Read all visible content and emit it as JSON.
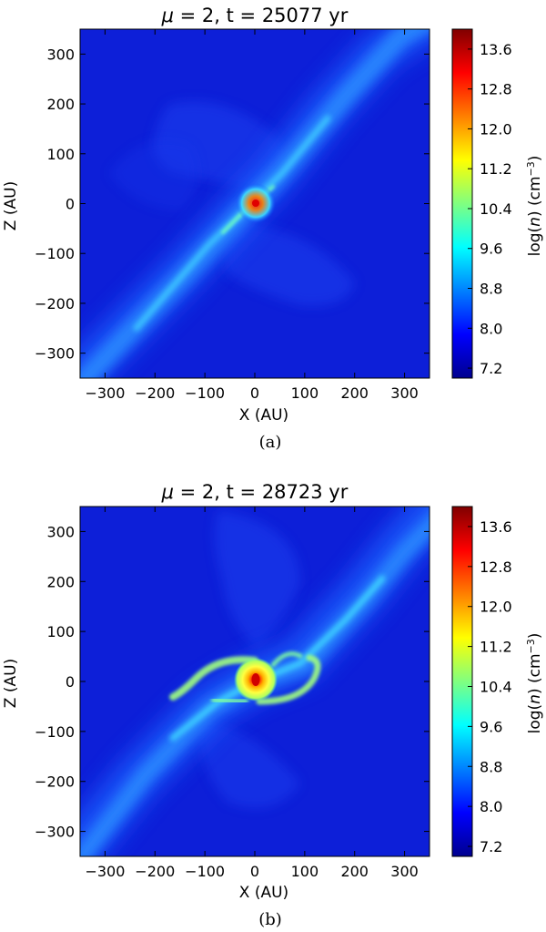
{
  "chart_data": [
    {
      "type": "heatmap",
      "title": "μ = 2, t = 25077 yr",
      "title_var": "μ",
      "title_rest": " = 2, t = 25077 yr",
      "xlabel": "X (AU)",
      "ylabel": "Z (AU)",
      "xlim": [
        -350,
        350
      ],
      "ylim": [
        -350,
        350
      ],
      "xticks": [
        -300,
        -200,
        -100,
        0,
        100,
        200,
        300
      ],
      "yticks": [
        300,
        200,
        100,
        0,
        -100,
        -200,
        -300
      ],
      "xtick_labels": [
        "−300",
        "−200",
        "−100",
        "0",
        "100",
        "200",
        "300"
      ],
      "ytick_labels": [
        "300",
        "200",
        "100",
        "0",
        "−100",
        "−200",
        "−300"
      ],
      "colorbar": {
        "label": "log(n) (cm⁻³)",
        "label_pre": "log(",
        "label_var": "n",
        "label_mid": ") (cm",
        "label_sup": "−3",
        "label_post": ")",
        "range": [
          7.0,
          14.0
        ],
        "ticks": [
          13.6,
          12.8,
          12.0,
          11.2,
          10.4,
          9.6,
          8.8,
          8.0,
          7.2
        ],
        "tick_labels": [
          "13.6",
          "12.8",
          "12.0",
          "11.2",
          "10.4",
          "9.6",
          "8.8",
          "8.0",
          "7.2"
        ],
        "colormap": "jet"
      },
      "caption": "(a)",
      "background_value": 7.2,
      "peak_value": 14.0
    },
    {
      "type": "heatmap",
      "title": "μ = 2, t = 28723 yr",
      "title_var": "μ",
      "title_rest": " = 2, t = 28723 yr",
      "xlabel": "X (AU)",
      "ylabel": "Z (AU)",
      "xlim": [
        -350,
        350
      ],
      "ylim": [
        -350,
        350
      ],
      "xticks": [
        -300,
        -200,
        -100,
        0,
        100,
        200,
        300
      ],
      "yticks": [
        300,
        200,
        100,
        0,
        -100,
        -200,
        -300
      ],
      "xtick_labels": [
        "−300",
        "−200",
        "−100",
        "0",
        "100",
        "200",
        "300"
      ],
      "ytick_labels": [
        "300",
        "200",
        "100",
        "0",
        "−100",
        "−200",
        "−300"
      ],
      "colorbar": {
        "label": "log(n) (cm⁻³)",
        "label_pre": "log(",
        "label_var": "n",
        "label_mid": ") (cm",
        "label_sup": "−3",
        "label_post": ")",
        "range": [
          7.0,
          14.0
        ],
        "ticks": [
          13.6,
          12.8,
          12.0,
          11.2,
          10.4,
          9.6,
          8.8,
          8.0,
          7.2
        ],
        "tick_labels": [
          "13.6",
          "12.8",
          "12.0",
          "11.2",
          "10.4",
          "9.6",
          "8.8",
          "8.0",
          "7.2"
        ],
        "colormap": "jet"
      },
      "caption": "(b)",
      "background_value": 7.2,
      "peak_value": 14.0
    }
  ]
}
